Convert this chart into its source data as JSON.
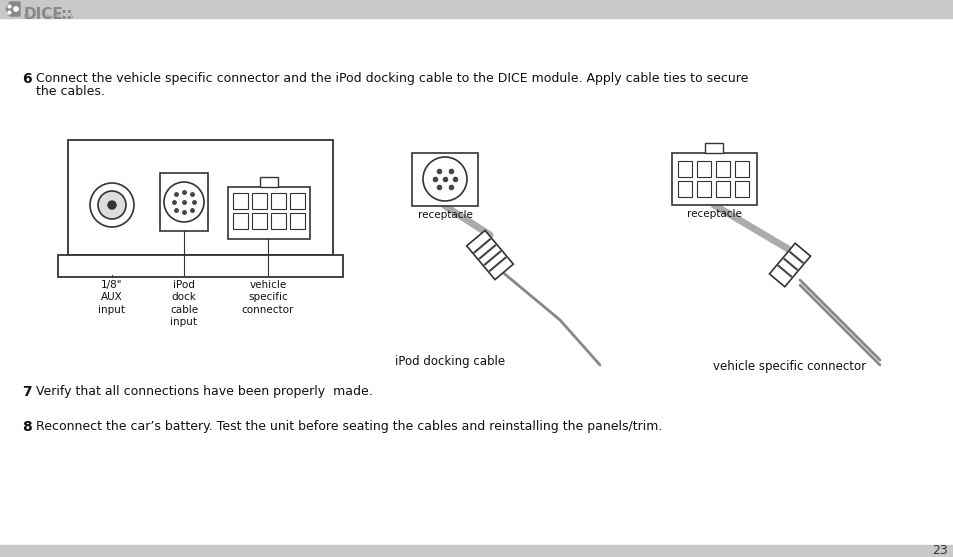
{
  "bg_color": "#ffffff",
  "header_bar_color": "#c8c8c8",
  "footer_bar_color": "#c8c8c8",
  "step6_num": "6",
  "step6_line1": "Connect the vehicle specific connector and the iPod docking cable to the DICE module. Apply cable ties to secure",
  "step6_line2": "the cables.",
  "step7_num": "7",
  "step7_text": "Verify that all connections have been properly  made.",
  "step8_num": "8",
  "step8_text": "Reconnect the car’s battery. Test the unit before seating the cables and reinstalling the panels/trim.",
  "page_number": "23",
  "label_aux": "1/8\"\nAUX\ninput",
  "label_ipod_dock": "iPod\ndock\ncable\ninput",
  "label_vehicle_conn": "vehicle\nspecific\nconnector",
  "label_receptacle1": "receptacle",
  "label_receptacle2": "receptacle",
  "label_ipod_cable": "iPod docking cable",
  "label_vehicle_specific": "vehicle specific connector",
  "line_color": "#333333",
  "dot_color": "#444444",
  "cable_color": "#aaaaaa",
  "text_color": "#111111"
}
